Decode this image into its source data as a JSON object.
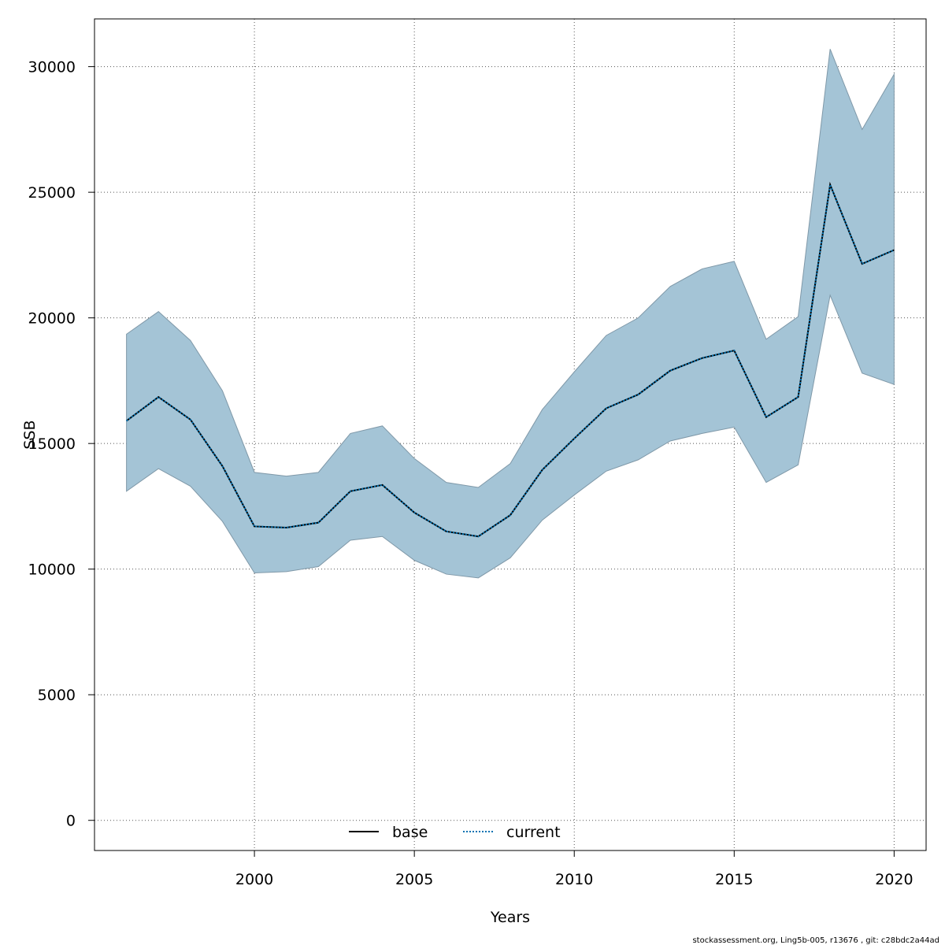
{
  "chart_data": {
    "type": "line",
    "xlabel": "Years",
    "ylabel": "SSB",
    "xlim": [
      1995,
      2021
    ],
    "ylim": [
      -1200,
      31900
    ],
    "x_ticks": [
      2000,
      2005,
      2010,
      2015,
      2020
    ],
    "y_ticks": [
      0,
      5000,
      10000,
      15000,
      20000,
      25000,
      30000
    ],
    "grid": true,
    "legend_position": "bottom",
    "x": [
      1996,
      1997,
      1998,
      1999,
      2000,
      2001,
      2002,
      2003,
      2004,
      2005,
      2006,
      2007,
      2008,
      2009,
      2010,
      2011,
      2012,
      2013,
      2014,
      2015,
      2016,
      2017,
      2018,
      2019,
      2020
    ],
    "series": [
      {
        "name": "base",
        "style": "solid",
        "color": "#000000",
        "values": [
          15900,
          16850,
          15950,
          14100,
          11700,
          11650,
          11850,
          13100,
          13350,
          12250,
          11500,
          11300,
          12150,
          13950,
          15200,
          16400,
          16950,
          17900,
          18400,
          18700,
          16050,
          16850,
          25300,
          22150,
          22700
        ]
      },
      {
        "name": "current",
        "style": "dotted",
        "color": "#0072B2",
        "values": [
          15900,
          16850,
          15950,
          14100,
          11700,
          11650,
          11850,
          13100,
          13350,
          12250,
          11500,
          11300,
          12150,
          13950,
          15200,
          16400,
          16950,
          17900,
          18400,
          18700,
          16050,
          16850,
          25300,
          22150,
          22700
        ]
      }
    ],
    "confidence_band": {
      "color": "#A4C4D6",
      "lower": [
        13100,
        14000,
        13300,
        11900,
        9850,
        9900,
        10100,
        11150,
        11300,
        10350,
        9800,
        9650,
        10450,
        11950,
        12950,
        13900,
        14350,
        15100,
        15400,
        15650,
        13450,
        14150,
        20900,
        17800,
        17350
      ],
      "upper": [
        19350,
        20250,
        19100,
        17100,
        13850,
        13700,
        13850,
        15400,
        15700,
        14400,
        13450,
        13250,
        14200,
        16350,
        17850,
        19300,
        20000,
        21250,
        21950,
        22250,
        19150,
        20050,
        30700,
        27500,
        29700
      ]
    }
  },
  "footer": {
    "credit": "stockassessment.org, Ling5b-005, r13676 , git: c28bdc2a44ad"
  }
}
